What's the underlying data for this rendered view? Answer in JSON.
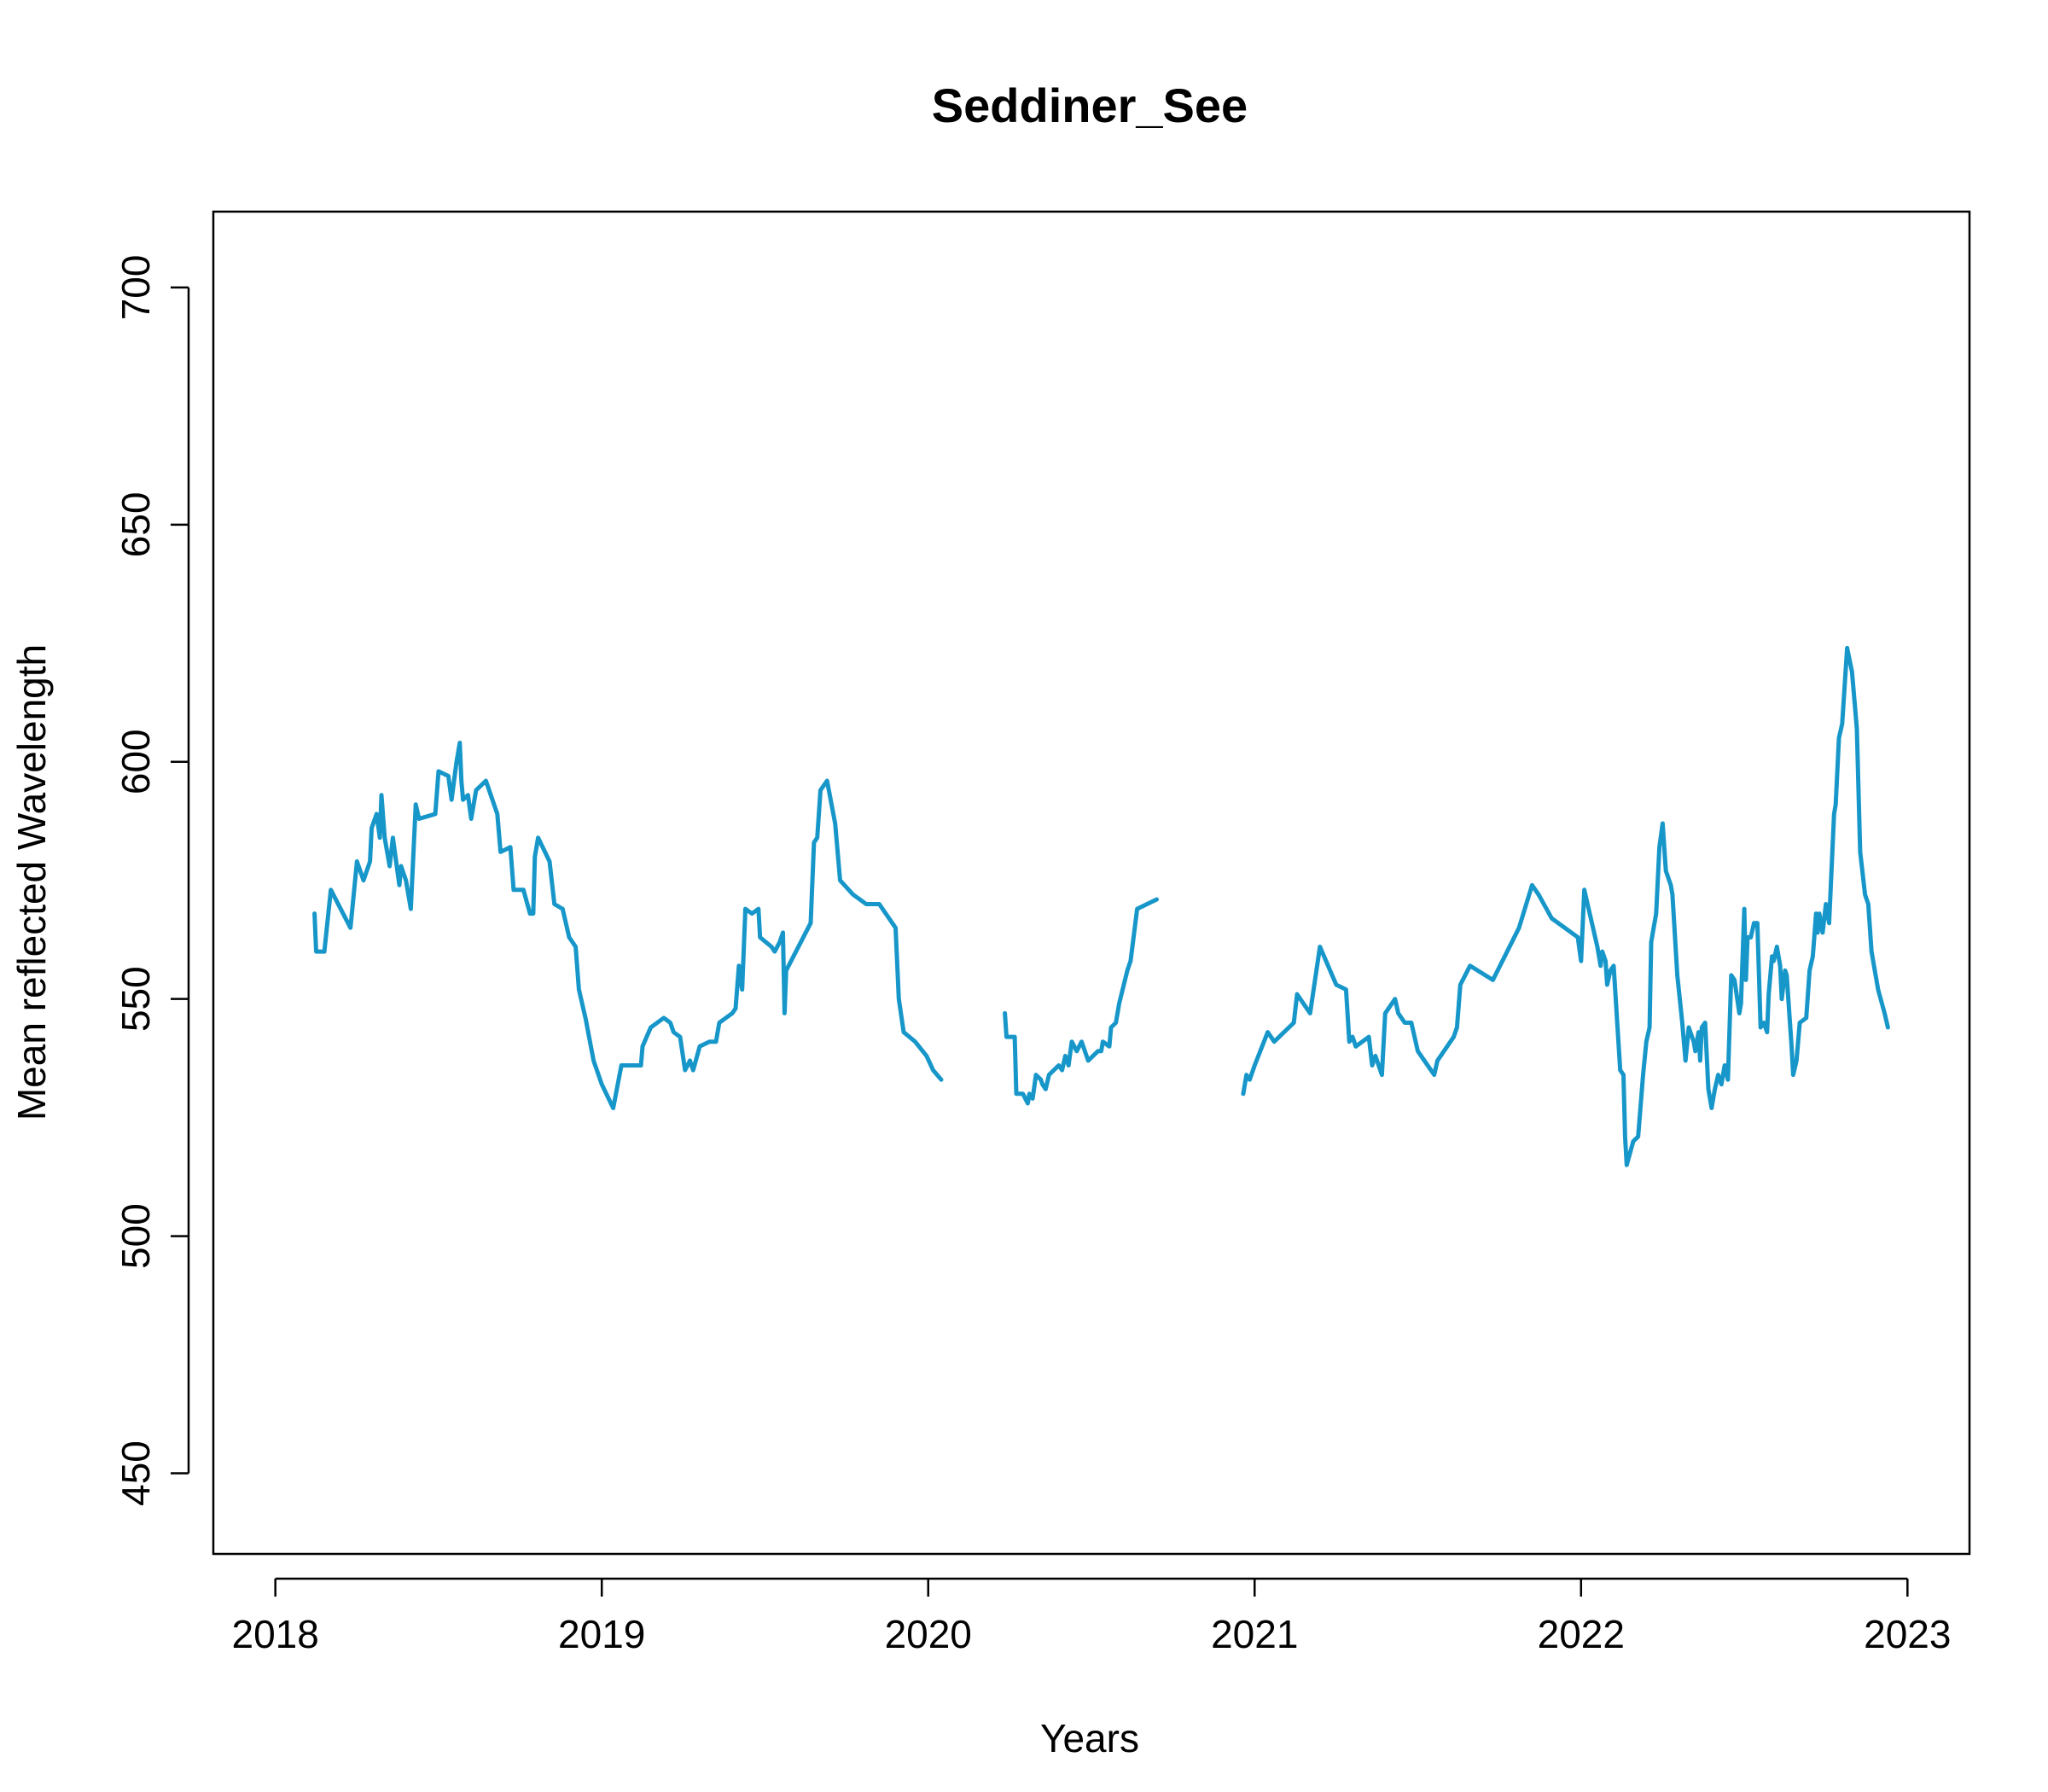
{
  "chart_data": {
    "type": "line",
    "title": "Seddiner_See",
    "xlabel": "Years",
    "ylabel": "Mean reflected Wavelength",
    "xlim": [
      2017.81,
      2023.19
    ],
    "ylim": [
      433,
      716
    ],
    "x_ticks": [
      "2018",
      "2019",
      "2020",
      "2021",
      "2022",
      "2023"
    ],
    "y_ticks": [
      "450",
      "500",
      "550",
      "600",
      "650",
      "700"
    ],
    "grid": false,
    "color": "#1797c9",
    "series": [
      {
        "segments": [
          [
            [
              2018.12,
              568
            ],
            [
              2018.125,
              560
            ],
            [
              2018.15,
              560
            ],
            [
              2018.17,
              573
            ],
            [
              2018.23,
              565
            ],
            [
              2018.25,
              579
            ],
            [
              2018.27,
              575
            ],
            [
              2018.29,
              579
            ],
            [
              2018.295,
              586
            ],
            [
              2018.31,
              589
            ],
            [
              2018.32,
              584
            ],
            [
              2018.325,
              593
            ],
            [
              2018.335,
              584
            ],
            [
              2018.35,
              578
            ],
            [
              2018.36,
              584
            ],
            [
              2018.38,
              574
            ],
            [
              2018.385,
              578
            ],
            [
              2018.4,
              575
            ],
            [
              2018.415,
              569
            ],
            [
              2018.43,
              591
            ],
            [
              2018.44,
              588
            ],
            [
              2018.49,
              589
            ],
            [
              2018.5,
              598
            ],
            [
              2018.53,
              597
            ],
            [
              2018.54,
              592
            ],
            [
              2018.555,
              600
            ],
            [
              2018.565,
              604
            ],
            [
              2018.57,
              596
            ],
            [
              2018.575,
              592
            ],
            [
              2018.59,
              593
            ],
            [
              2018.6,
              588
            ],
            [
              2018.615,
              594
            ],
            [
              2018.645,
              596
            ],
            [
              2018.68,
              589
            ],
            [
              2018.69,
              581
            ],
            [
              2018.72,
              582
            ],
            [
              2018.73,
              573
            ],
            [
              2018.76,
              573
            ],
            [
              2018.78,
              568
            ],
            [
              2018.79,
              568
            ],
            [
              2018.795,
              580
            ],
            [
              2018.805,
              584
            ],
            [
              2018.84,
              579
            ],
            [
              2018.855,
              570
            ],
            [
              2018.88,
              569
            ],
            [
              2018.9,
              563
            ],
            [
              2018.92,
              561
            ],
            [
              2018.93,
              552
            ],
            [
              2018.95,
              546
            ],
            [
              2018.975,
              537
            ],
            [
              2019.0,
              532
            ],
            [
              2019.035,
              527
            ],
            [
              2019.06,
              536
            ],
            [
              2019.12,
              536
            ],
            [
              2019.125,
              540
            ],
            [
              2019.15,
              544
            ],
            [
              2019.19,
              546
            ],
            [
              2019.21,
              545
            ],
            [
              2019.22,
              543
            ],
            [
              2019.24,
              542
            ],
            [
              2019.255,
              535
            ],
            [
              2019.27,
              537
            ],
            [
              2019.28,
              535
            ],
            [
              2019.3,
              540
            ],
            [
              2019.33,
              541
            ],
            [
              2019.35,
              541
            ],
            [
              2019.36,
              545
            ],
            [
              2019.4,
              547
            ],
            [
              2019.41,
              548
            ],
            [
              2019.42,
              557
            ],
            [
              2019.43,
              552
            ],
            [
              2019.44,
              569
            ],
            [
              2019.46,
              568
            ],
            [
              2019.48,
              569
            ],
            [
              2019.485,
              563
            ],
            [
              2019.52,
              561
            ],
            [
              2019.53,
              560
            ],
            [
              2019.545,
              562
            ],
            [
              2019.555,
              564
            ],
            [
              2019.56,
              547
            ],
            [
              2019.565,
              556
            ],
            [
              2019.64,
              566
            ],
            [
              2019.65,
              583
            ],
            [
              2019.66,
              584
            ],
            [
              2019.67,
              594
            ],
            [
              2019.69,
              596
            ],
            [
              2019.715,
              587
            ],
            [
              2019.73,
              575
            ],
            [
              2019.77,
              572
            ],
            [
              2019.81,
              570
            ],
            [
              2019.85,
              570
            ],
            [
              2019.9,
              565
            ],
            [
              2019.91,
              550
            ],
            [
              2019.925,
              543
            ],
            [
              2019.96,
              541
            ],
            [
              2019.995,
              538
            ],
            [
              2020.015,
              535
            ],
            [
              2020.04,
              533
            ]
          ],
          [
            [
              2020.235,
              547
            ],
            [
              2020.24,
              542
            ],
            [
              2020.265,
              542
            ],
            [
              2020.27,
              530
            ],
            [
              2020.29,
              530
            ],
            [
              2020.305,
              528
            ],
            [
              2020.31,
              530
            ],
            [
              2020.32,
              529
            ],
            [
              2020.33,
              534
            ],
            [
              2020.345,
              533
            ],
            [
              2020.35,
              532
            ],
            [
              2020.36,
              531
            ],
            [
              2020.37,
              534
            ],
            [
              2020.4,
              536
            ],
            [
              2020.41,
              535
            ],
            [
              2020.42,
              538
            ],
            [
              2020.43,
              536
            ],
            [
              2020.44,
              541
            ],
            [
              2020.455,
              539
            ],
            [
              2020.47,
              541
            ],
            [
              2020.49,
              537
            ],
            [
              2020.52,
              539
            ],
            [
              2020.53,
              539
            ],
            [
              2020.535,
              541
            ],
            [
              2020.555,
              540
            ],
            [
              2020.56,
              544
            ],
            [
              2020.575,
              545
            ],
            [
              2020.585,
              549
            ],
            [
              2020.61,
              556
            ],
            [
              2020.62,
              558
            ],
            [
              2020.64,
              569
            ],
            [
              2020.7,
              571
            ]
          ],
          [
            [
              2020.965,
              530
            ],
            [
              2020.975,
              534
            ],
            [
              2020.985,
              533
            ],
            [
              2021.0,
              536
            ],
            [
              2021.04,
              543
            ],
            [
              2021.05,
              542
            ],
            [
              2021.06,
              541
            ],
            [
              2021.12,
              545
            ],
            [
              2021.13,
              551
            ],
            [
              2021.17,
              547
            ],
            [
              2021.2,
              561
            ],
            [
              2021.25,
              553
            ],
            [
              2021.28,
              552
            ],
            [
              2021.29,
              541
            ],
            [
              2021.3,
              542
            ],
            [
              2021.31,
              540
            ],
            [
              2021.35,
              542
            ],
            [
              2021.36,
              536
            ],
            [
              2021.37,
              538
            ],
            [
              2021.39,
              534
            ],
            [
              2021.4,
              547
            ],
            [
              2021.43,
              550
            ],
            [
              2021.44,
              547
            ],
            [
              2021.45,
              546
            ],
            [
              2021.46,
              545
            ],
            [
              2021.48,
              545
            ],
            [
              2021.5,
              539
            ],
            [
              2021.55,
              534
            ],
            [
              2021.56,
              537
            ],
            [
              2021.61,
              542
            ],
            [
              2021.62,
              544
            ],
            [
              2021.63,
              553
            ],
            [
              2021.66,
              557
            ],
            [
              2021.73,
              554
            ],
            [
              2021.81,
              565
            ],
            [
              2021.85,
              574
            ],
            [
              2021.87,
              572
            ],
            [
              2021.91,
              567
            ],
            [
              2021.99,
              563
            ],
            [
              2022.0,
              558
            ],
            [
              2022.01,
              573
            ],
            [
              2022.05,
              561
            ],
            [
              2022.06,
              557
            ],
            [
              2022.065,
              560
            ],
            [
              2022.075,
              558
            ],
            [
              2022.08,
              553
            ],
            [
              2022.09,
              556
            ],
            [
              2022.1,
              557
            ],
            [
              2022.12,
              535
            ],
            [
              2022.13,
              534
            ],
            [
              2022.135,
              521
            ],
            [
              2022.14,
              515
            ],
            [
              2022.16,
              520
            ],
            [
              2022.175,
              521
            ],
            [
              2022.19,
              534
            ],
            [
              2022.2,
              541
            ],
            [
              2022.21,
              544
            ],
            [
              2022.215,
              562
            ],
            [
              2022.23,
              568
            ],
            [
              2022.24,
              582
            ],
            [
              2022.25,
              587
            ],
            [
              2022.26,
              577
            ],
            [
              2022.275,
              574
            ],
            [
              2022.28,
              572
            ],
            [
              2022.295,
              555
            ],
            [
              2022.31,
              545
            ],
            [
              2022.32,
              537
            ],
            [
              2022.33,
              544
            ],
            [
              2022.345,
              541
            ],
            [
              2022.35,
              539
            ],
            [
              2022.36,
              543
            ],
            [
              2022.365,
              537
            ],
            [
              2022.37,
              544
            ],
            [
              2022.38,
              545
            ],
            [
              2022.39,
              531
            ],
            [
              2022.4,
              527
            ],
            [
              2022.41,
              531
            ],
            [
              2022.42,
              534
            ],
            [
              2022.43,
              532
            ],
            [
              2022.44,
              536
            ],
            [
              2022.45,
              533
            ],
            [
              2022.46,
              555
            ],
            [
              2022.47,
              554
            ],
            [
              2022.485,
              547
            ],
            [
              2022.49,
              549
            ],
            [
              2022.5,
              569
            ],
            [
              2022.505,
              554
            ],
            [
              2022.51,
              563
            ],
            [
              2022.52,
              563
            ],
            [
              2022.53,
              566
            ],
            [
              2022.54,
              566
            ],
            [
              2022.55,
              544
            ],
            [
              2022.56,
              545
            ],
            [
              2022.57,
              543
            ],
            [
              2022.575,
              551
            ],
            [
              2022.585,
              559
            ],
            [
              2022.59,
              558
            ],
            [
              2022.6,
              561
            ],
            [
              2022.61,
              557
            ],
            [
              2022.615,
              550
            ],
            [
              2022.625,
              556
            ],
            [
              2022.63,
              555
            ],
            [
              2022.645,
              540
            ],
            [
              2022.65,
              534
            ],
            [
              2022.66,
              537
            ],
            [
              2022.67,
              545
            ],
            [
              2022.69,
              546
            ],
            [
              2022.7,
              556
            ],
            [
              2022.71,
              559
            ],
            [
              2022.72,
              568
            ],
            [
              2022.725,
              564
            ],
            [
              2022.73,
              568
            ],
            [
              2022.74,
              564
            ],
            [
              2022.75,
              570
            ],
            [
              2022.76,
              566
            ],
            [
              2022.775,
              589
            ],
            [
              2022.78,
              591
            ],
            [
              2022.79,
              605
            ],
            [
              2022.8,
              608
            ],
            [
              2022.815,
              624
            ],
            [
              2022.83,
              619
            ],
            [
              2022.845,
              607
            ],
            [
              2022.855,
              581
            ],
            [
              2022.87,
              572
            ],
            [
              2022.88,
              570
            ],
            [
              2022.89,
              560
            ],
            [
              2022.91,
              552
            ],
            [
              2022.93,
              547
            ],
            [
              2022.94,
              544
            ]
          ]
        ]
      }
    ]
  }
}
